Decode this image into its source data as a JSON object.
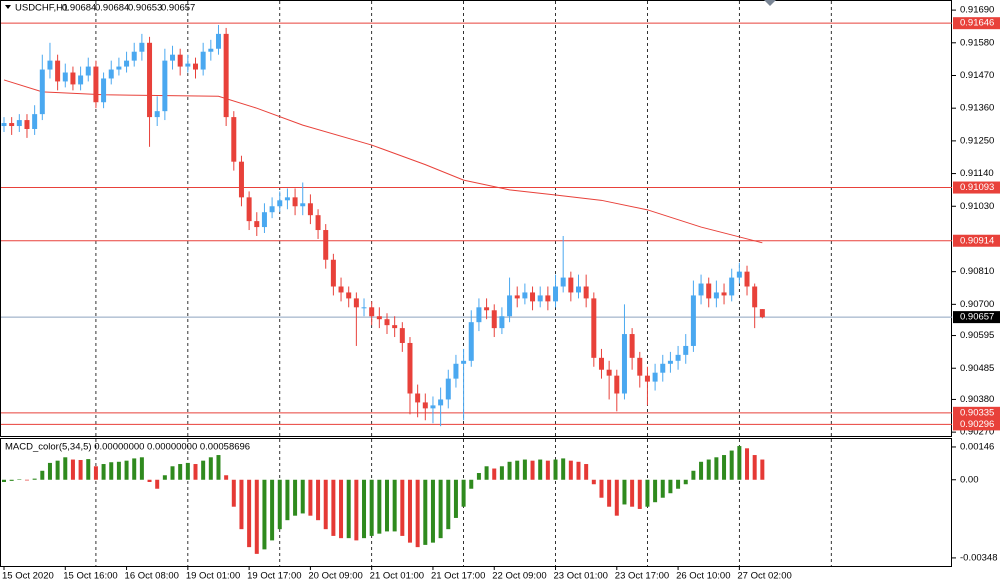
{
  "chart_data": {
    "type": "candlestick",
    "header": "USDCHF,H1",
    "indicator_label": "MACD_color(5,34,5) 0.00000000 0.00000000 0.00058696",
    "categories": [
      "15 Oct 2020",
      null,
      null,
      null,
      null,
      null,
      null,
      null,
      "15 Oct 16:00",
      null,
      null,
      null,
      null,
      null,
      null,
      null,
      "16 Oct 08:00",
      null,
      null,
      null,
      null,
      null,
      null,
      null,
      "19 Oct 01:00",
      null,
      null,
      null,
      null,
      null,
      null,
      null,
      "19 Oct 17:00",
      null,
      null,
      null,
      null,
      null,
      null,
      null,
      "20 Oct 09:00",
      null,
      null,
      null,
      null,
      null,
      null,
      null,
      "21 Oct 01:00",
      null,
      null,
      null,
      null,
      null,
      null,
      null,
      "21 Oct 17:00",
      null,
      null,
      null,
      null,
      null,
      null,
      null,
      "22 Oct 09:00",
      null,
      null,
      null,
      null,
      null,
      null,
      null,
      "23 Oct 01:00",
      null,
      null,
      null,
      null,
      null,
      null,
      null,
      "23 Oct 17:00",
      null,
      null,
      null,
      null,
      null,
      null,
      null,
      "26 Oct 10:00",
      null,
      null,
      null,
      null,
      null,
      null,
      null,
      "27 Oct 02:00",
      null,
      null,
      null
    ],
    "candles": {
      "up_color": "#4aa8f0",
      "down_color": "#e8413a",
      "open": [
        0.913,
        0.9131,
        0.913,
        0.9132,
        0.9129,
        0.9134,
        0.9149,
        0.9152,
        0.9145,
        0.9148,
        0.9144,
        0.9147,
        0.915,
        0.9138,
        0.9146,
        0.9149,
        0.915,
        0.9152,
        0.9155,
        0.9158,
        0.9133,
        0.9135,
        0.9152,
        0.9154,
        0.915,
        0.9151,
        0.9149,
        0.9155,
        0.9156,
        0.9161,
        0.9133,
        0.9118,
        0.9106,
        0.9098,
        0.9096,
        0.9101,
        0.9103,
        0.9105,
        0.9106,
        0.9103,
        0.9104,
        0.91,
        0.9095,
        0.9085,
        0.9076,
        0.9074,
        0.9072,
        0.9069,
        0.9069,
        0.9066,
        0.9065,
        0.9063,
        0.9062,
        0.9057,
        0.904,
        0.9037,
        0.9035,
        0.9036,
        0.9038,
        0.9045,
        0.905,
        0.9051,
        0.9064,
        0.9069,
        0.9068,
        0.9062,
        0.9066,
        0.9073,
        0.9072,
        0.9074,
        0.9071,
        0.9073,
        0.9071,
        0.9076,
        0.9079,
        0.9074,
        0.9076,
        0.9072,
        0.9052,
        0.9048,
        0.9046,
        0.904,
        0.906,
        0.9052,
        0.9046,
        0.9044,
        0.9047,
        0.905,
        0.9051,
        0.9053,
        0.9056,
        0.9073,
        0.9077,
        0.9072,
        0.9074,
        0.9073,
        0.9079,
        0.9081,
        0.9076,
        0.90684
      ],
      "high": [
        0.9133,
        0.9133,
        0.9134,
        0.9134,
        0.9137,
        0.9154,
        0.9158,
        0.9154,
        0.9151,
        0.915,
        0.915,
        0.9153,
        0.9152,
        0.9148,
        0.9152,
        0.9153,
        0.9155,
        0.9158,
        0.9161,
        0.916,
        0.914,
        0.9156,
        0.9157,
        0.9156,
        0.9154,
        0.9153,
        0.9158,
        0.9159,
        0.9164,
        0.9163,
        0.9135,
        0.912,
        0.9108,
        0.9101,
        0.9104,
        0.9106,
        0.9108,
        0.9109,
        0.9109,
        0.9111,
        0.9107,
        0.9102,
        0.9097,
        0.9087,
        0.9079,
        0.9076,
        0.9074,
        0.9072,
        0.9071,
        0.9069,
        0.9067,
        0.9066,
        0.9064,
        0.9059,
        0.9043,
        0.904,
        0.9039,
        0.9042,
        0.9048,
        0.9053,
        0.9055,
        0.9068,
        0.9072,
        0.9072,
        0.907,
        0.9069,
        0.9079,
        0.9076,
        0.9077,
        0.9076,
        0.9076,
        0.9076,
        0.908,
        0.9093,
        0.9081,
        0.908,
        0.908,
        0.9074,
        0.9055,
        0.9051,
        0.9048,
        0.907,
        0.9062,
        0.9054,
        0.9049,
        0.905,
        0.9053,
        0.9054,
        0.9056,
        0.906,
        0.9078,
        0.908,
        0.9079,
        0.9078,
        0.9077,
        0.9082,
        0.9084,
        0.9083,
        0.9077,
        0.90684
      ],
      "low": [
        0.9128,
        0.9127,
        0.9128,
        0.9126,
        0.9127,
        0.9132,
        0.9146,
        0.9142,
        0.9143,
        0.9142,
        0.9142,
        0.9145,
        0.9136,
        0.9136,
        0.9144,
        0.9147,
        0.9148,
        0.915,
        0.9152,
        0.9123,
        0.913,
        0.9132,
        0.9149,
        0.9147,
        0.9148,
        0.9146,
        0.9147,
        0.9152,
        0.9154,
        0.913,
        0.9115,
        0.9103,
        0.9095,
        0.9093,
        0.9094,
        0.9099,
        0.9101,
        0.9102,
        0.91,
        0.91,
        0.9097,
        0.9092,
        0.9082,
        0.9073,
        0.9071,
        0.9069,
        0.9056,
        0.9066,
        0.9063,
        0.9062,
        0.906,
        0.9059,
        0.9054,
        0.9033,
        0.9032,
        0.9031,
        0.903,
        0.9029,
        0.9035,
        0.9042,
        0.9031,
        0.9049,
        0.9061,
        0.9065,
        0.9059,
        0.906,
        0.9064,
        0.9069,
        0.907,
        0.9068,
        0.9069,
        0.9068,
        0.9069,
        0.9074,
        0.9071,
        0.9072,
        0.9069,
        0.9049,
        0.9045,
        0.9038,
        0.9034,
        0.9038,
        0.9048,
        0.9042,
        0.9036,
        0.9041,
        0.9044,
        0.9047,
        0.9048,
        0.905,
        0.9054,
        0.907,
        0.9069,
        0.9069,
        0.907,
        0.9071,
        0.9077,
        0.9073,
        0.9062,
        0.90653
      ],
      "close": [
        0.9131,
        0.913,
        0.9132,
        0.9129,
        0.9134,
        0.9149,
        0.9152,
        0.9145,
        0.9148,
        0.9144,
        0.9147,
        0.915,
        0.9138,
        0.9146,
        0.9149,
        0.915,
        0.9152,
        0.9155,
        0.9158,
        0.9133,
        0.9135,
        0.9152,
        0.9154,
        0.915,
        0.9151,
        0.9149,
        0.9155,
        0.9156,
        0.9161,
        0.9133,
        0.9118,
        0.9106,
        0.9098,
        0.9096,
        0.9101,
        0.9103,
        0.9105,
        0.9106,
        0.9103,
        0.9104,
        0.91,
        0.9095,
        0.9085,
        0.9076,
        0.9074,
        0.9072,
        0.9069,
        0.9069,
        0.9066,
        0.9065,
        0.9063,
        0.9062,
        0.9057,
        0.904,
        0.9037,
        0.9035,
        0.9036,
        0.9038,
        0.9045,
        0.905,
        0.9051,
        0.9064,
        0.9069,
        0.9068,
        0.9062,
        0.9066,
        0.9073,
        0.9072,
        0.9074,
        0.9071,
        0.9073,
        0.9071,
        0.9076,
        0.9079,
        0.9074,
        0.9076,
        0.9072,
        0.9052,
        0.9048,
        0.9046,
        0.904,
        0.906,
        0.9052,
        0.9046,
        0.9044,
        0.9047,
        0.905,
        0.9051,
        0.9053,
        0.9056,
        0.9073,
        0.9077,
        0.9072,
        0.9074,
        0.9073,
        0.9079,
        0.9081,
        0.9076,
        0.9069,
        0.90657
      ]
    },
    "moving_average": {
      "color": "#e8413a",
      "x": [
        0,
        5,
        13,
        28,
        33,
        39,
        48,
        55,
        60,
        66,
        72,
        78,
        84,
        91,
        99
      ],
      "values": [
        0.91455,
        0.91415,
        0.91405,
        0.914,
        0.9136,
        0.91303,
        0.91236,
        0.9117,
        0.91118,
        0.91085,
        0.91068,
        0.9105,
        0.91018,
        0.9096,
        0.90907
      ]
    },
    "ylim": [
      0.90257,
      0.91724
    ],
    "yticks": [
      {
        "value": 0.9169,
        "label": "0.91690"
      },
      {
        "value": 0.9158,
        "label": "0.91580"
      },
      {
        "value": 0.9147,
        "label": "0.91470"
      },
      {
        "value": 0.9136,
        "label": "0.91360"
      },
      {
        "value": 0.9125,
        "label": "0.91250"
      },
      {
        "value": 0.9114,
        "label": "0.91140"
      },
      {
        "value": 0.9103,
        "label": "0.91030"
      },
      {
        "value": 0.9081,
        "label": "0.90810"
      },
      {
        "value": 0.907,
        "label": "0.90700"
      },
      0.90595,
      0.90485,
      {
        "value": 0.9038,
        "label": "0.90380"
      },
      {
        "value": 0.9027,
        "label": "0.90270"
      }
    ],
    "levels": [
      {
        "value": 0.91646,
        "color": "#e8413a",
        "label_color": "#e8413a"
      },
      {
        "value": 0.91093,
        "color": "#e8413a",
        "label_color": "#e8413a"
      },
      {
        "value": 0.90914,
        "color": "#e8413a",
        "label_color": "#e8413a"
      },
      {
        "value": 0.90657,
        "color": "#8ea3bf",
        "label_color": "#000000"
      },
      {
        "value": 0.90335,
        "color": "#e8413a",
        "label_color": "#e8413a"
      },
      {
        "value": 0.90296,
        "color": "#e8413a",
        "label_color": "#e8413a"
      }
    ],
    "macd": {
      "up_color": "#2f8a1e",
      "down_color": "#e53935",
      "values": [
        -0.0001,
        -5e-05,
        2e-05,
        -3e-05,
        5e-05,
        0.0004,
        0.00075,
        0.00085,
        0.001,
        0.0009,
        0.00088,
        0.00092,
        0.0006,
        0.0007,
        0.00078,
        0.0008,
        0.00085,
        0.00095,
        0.001,
        -0.0001,
        -0.0004,
        0.0002,
        0.0006,
        0.0007,
        0.00075,
        0.0007,
        0.00085,
        0.001,
        0.0011,
        0.0002,
        -0.0012,
        -0.0022,
        -0.003,
        -0.0033,
        -0.0031,
        -0.0027,
        -0.0022,
        -0.0018,
        -0.0016,
        -0.0015,
        -0.0016,
        -0.0018,
        -0.0022,
        -0.0025,
        -0.0026,
        -0.0026,
        -0.0027,
        -0.0026,
        -0.0025,
        -0.0024,
        -0.0023,
        -0.0023,
        -0.0025,
        -0.0028,
        -0.003,
        -0.0029,
        -0.0028,
        -0.0026,
        -0.0022,
        -0.0017,
        -0.0012,
        -0.0004,
        0.0003,
        0.0006,
        0.0005,
        0.0006,
        0.0008,
        0.00085,
        0.0009,
        0.00085,
        0.0009,
        0.00085,
        0.0009,
        0.00095,
        0.00085,
        0.0008,
        0.0007,
        -0.0002,
        -0.0008,
        -0.0012,
        -0.0016,
        -0.0011,
        -0.0012,
        -0.0013,
        -0.0012,
        -0.001,
        -0.0008,
        -0.0006,
        -0.0004,
        -0.0002,
        0.0004,
        0.0008,
        0.0009,
        0.001,
        0.0011,
        0.0013,
        0.0015,
        0.0014,
        0.0011,
        0.0009
      ],
      "ylim": [
        -0.00384,
        0.00177
      ],
      "yticks": [
        0.00146,
        {
          "value": 0,
          "label": "0.00"
        },
        -0.00348
      ]
    }
  }
}
